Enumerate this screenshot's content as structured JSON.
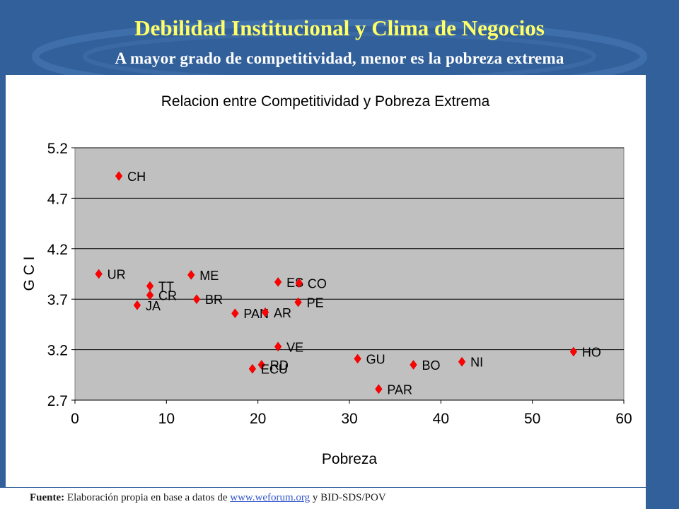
{
  "slide": {
    "title": "Debilidad Institucional y Clima de Negocios",
    "subtitle": "A mayor grado de competitividad, menor es la pobreza extrema",
    "colors": {
      "background": "#31609a",
      "title": "#ffff66",
      "subtitle": "#ffffff",
      "marker": "#ff0000",
      "plot_area": "#c0c0c0"
    }
  },
  "chart_data": {
    "type": "scatter",
    "title": "Relacion entre Competitividad y Pobreza Extrema",
    "xlabel": "Pobreza",
    "ylabel": "G C I",
    "xlim": [
      0,
      60
    ],
    "ylim": [
      2.7,
      5.2
    ],
    "xticks": [
      "0",
      "10",
      "20",
      "30",
      "40",
      "50",
      "60"
    ],
    "yticks": [
      "2.7",
      "3.2",
      "3.7",
      "4.2",
      "4.7",
      "5.2"
    ],
    "grid": true,
    "marker": "diamond",
    "points": [
      {
        "label": "CH",
        "x": 4.8,
        "y": 4.92
      },
      {
        "label": "UR",
        "x": 2.6,
        "y": 3.95
      },
      {
        "label": "TT",
        "x": 8.2,
        "y": 3.83
      },
      {
        "label": "CR",
        "x": 8.2,
        "y": 3.74
      },
      {
        "label": "JA",
        "x": 6.8,
        "y": 3.64
      },
      {
        "label": "ME",
        "x": 12.7,
        "y": 3.94
      },
      {
        "label": "BR",
        "x": 13.3,
        "y": 3.7
      },
      {
        "label": "PAN",
        "x": 17.5,
        "y": 3.56
      },
      {
        "label": "AR",
        "x": 20.8,
        "y": 3.57
      },
      {
        "label": "ES",
        "x": 22.2,
        "y": 3.87
      },
      {
        "label": "CO",
        "x": 24.5,
        "y": 3.86
      },
      {
        "label": "PE",
        "x": 24.4,
        "y": 3.67
      },
      {
        "label": "VE",
        "x": 22.2,
        "y": 3.23
      },
      {
        "label": "RD",
        "x": 20.4,
        "y": 3.05
      },
      {
        "label": "ECU",
        "x": 19.4,
        "y": 3.01
      },
      {
        "label": "GU",
        "x": 30.9,
        "y": 3.11
      },
      {
        "label": "PAR",
        "x": 33.2,
        "y": 2.81
      },
      {
        "label": "BO",
        "x": 37.0,
        "y": 3.05
      },
      {
        "label": "NI",
        "x": 42.3,
        "y": 3.08
      },
      {
        "label": "HO",
        "x": 54.5,
        "y": 3.18
      }
    ]
  },
  "footer": {
    "source_label": "Fuente:",
    "source_text": "Elaboración propia en base a datos de",
    "link_text": "www.weforum.org",
    "tail_text": "y BID-SDS/POV"
  }
}
